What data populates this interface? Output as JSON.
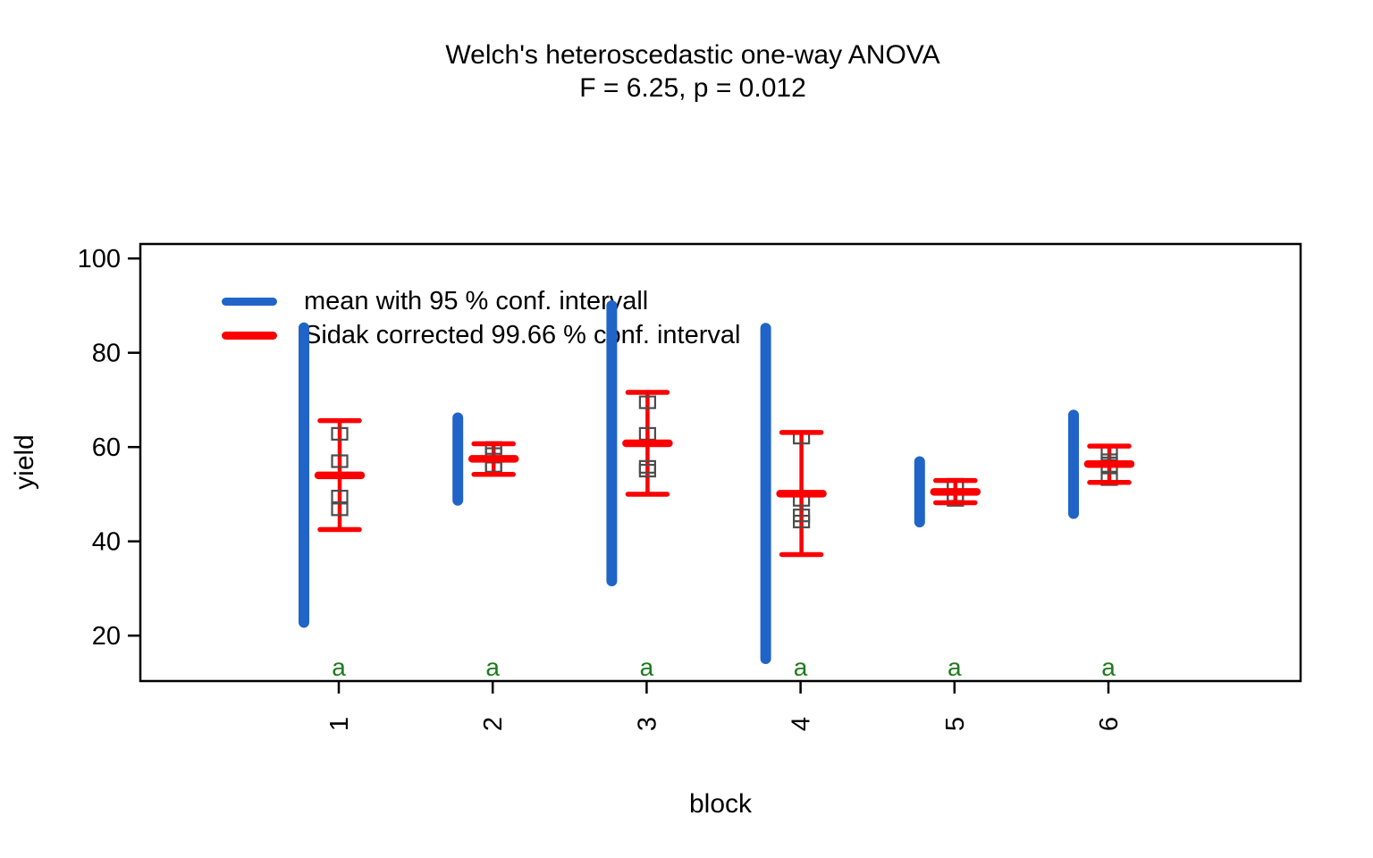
{
  "title": {
    "line1": "Welch's heteroscedastic one-way ANOVA",
    "line2": "F = 6.25, p = 0.012"
  },
  "legend": {
    "items": [
      {
        "label": "mean with 95 % conf. intervall",
        "color": "#2164c8"
      },
      {
        "label": "Sidak corrected 99.66 % conf. interval",
        "color": "#fa0000"
      }
    ]
  },
  "axes": {
    "y": {
      "label": "yield",
      "ticks": [
        "20",
        "40",
        "60",
        "80",
        "100"
      ]
    },
    "x": {
      "label": "block",
      "ticks": [
        "1",
        "2",
        "3",
        "4",
        "5",
        "6"
      ]
    }
  },
  "chart_data": {
    "type": "scatter",
    "subtype": "means-with-confidence-intervals",
    "title": "Welch's heteroscedastic one-way ANOVA",
    "subtitle": "F = 6.25, p = 0.012",
    "xlabel": "block",
    "ylabel": "yield",
    "categories": [
      "1",
      "2",
      "3",
      "4",
      "5",
      "6"
    ],
    "yticks": [
      20,
      40,
      60,
      80,
      100
    ],
    "ylim": [
      10.3,
      103
    ],
    "grid": false,
    "legend_position": "top-left-inside",
    "sig_letters": [
      "a",
      "a",
      "a",
      "a",
      "a",
      "a"
    ],
    "groups": [
      {
        "block": "1",
        "mean": 54.0,
        "blue_ci": [
          22.8,
          85.3
        ],
        "red_ci": [
          42.5,
          65.6
        ],
        "points": [
          62.8,
          57.0,
          49.5,
          46.8
        ]
      },
      {
        "block": "2",
        "mean": 57.5,
        "blue_ci": [
          48.7,
          66.2
        ],
        "red_ci": [
          54.2,
          60.7
        ],
        "points": [
          59.8,
          58.5,
          56.0,
          55.5
        ]
      },
      {
        "block": "3",
        "mean": 60.8,
        "blue_ci": [
          31.6,
          90.0
        ],
        "red_ci": [
          50.0,
          71.6
        ],
        "points": [
          69.5,
          62.8,
          55.8,
          55.0
        ]
      },
      {
        "block": "4",
        "mean": 50.1,
        "blue_ci": [
          15.1,
          85.2
        ],
        "red_ci": [
          37.2,
          63.1
        ],
        "points": [
          62.0,
          48.8,
          45.5,
          44.2
        ]
      },
      {
        "block": "5",
        "mean": 50.5,
        "blue_ci": [
          44.1,
          56.9
        ],
        "red_ci": [
          48.2,
          52.9
        ],
        "points": [
          52.0,
          51.5,
          49.8,
          48.8
        ]
      },
      {
        "block": "6",
        "mean": 56.4,
        "blue_ci": [
          45.9,
          66.8
        ],
        "red_ci": [
          52.5,
          60.2
        ],
        "points": [
          59.0,
          57.2,
          56.0,
          53.2
        ]
      }
    ],
    "colors": {
      "blue_bar": "#2164c8",
      "red_bar": "#fa0000",
      "point_square": "#4d4d4d",
      "sig_letter": "#1e7a1e",
      "axis": "#000000",
      "background": "#ffffff"
    }
  }
}
